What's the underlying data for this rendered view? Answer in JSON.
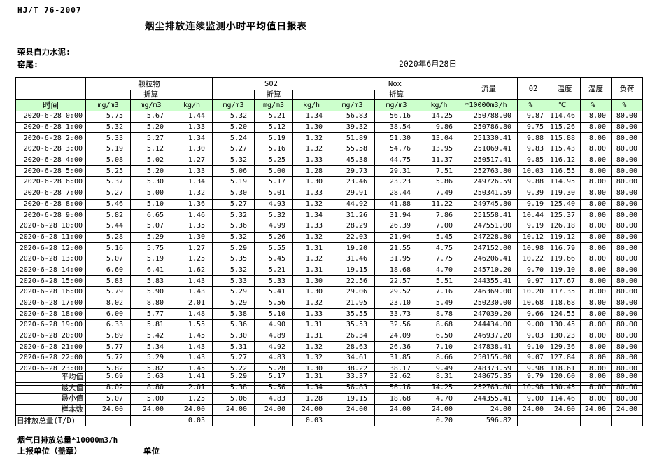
{
  "page": {
    "doc_code": "HJ/T  76-2007",
    "title": "烟尘排放连续监测小时平均值日报表",
    "company": "荣县自力水泥:",
    "location": "窑尾:",
    "date": "2020年6月28日"
  },
  "colors": {
    "header_green": "#ccffcc"
  },
  "table": {
    "time_label": "时间",
    "converted_label": "折算",
    "groups": {
      "particulate": "颗粒物",
      "so2": "S02",
      "nox": "Nox",
      "flow": "流量",
      "o2": "02",
      "temperature": "温度",
      "humidity": "湿度",
      "load": "负荷"
    },
    "units": [
      "mg/m3",
      "mg/m3",
      "kg/h",
      "mg/m3",
      "mg/m3",
      "kg/h",
      "mg/m3",
      "mg/m3",
      "kg/h",
      "*10000m3/h",
      "%",
      "℃",
      "%",
      "%"
    ],
    "rows": [
      {
        "time": "2020-6-28 0:00",
        "values": [
          "5.75",
          "5.67",
          "1.44",
          "5.32",
          "5.21",
          "1.34",
          "56.83",
          "56.16",
          "14.25",
          "250788.00",
          "9.87",
          "114.46",
          "8.00",
          "80.00"
        ]
      },
      {
        "time": "2020-6-28 1:00",
        "values": [
          "5.32",
          "5.20",
          "1.33",
          "5.20",
          "5.12",
          "1.30",
          "39.32",
          "38.54",
          "9.86",
          "250786.80",
          "9.75",
          "115.26",
          "8.00",
          "80.00"
        ]
      },
      {
        "time": "2020-6-28 2:00",
        "values": [
          "5.33",
          "5.27",
          "1.34",
          "5.24",
          "5.19",
          "1.32",
          "51.89",
          "51.30",
          "13.04",
          "251330.41",
          "9.88",
          "115.88",
          "8.00",
          "80.00"
        ]
      },
      {
        "time": "2020-6-28 3:00",
        "values": [
          "5.19",
          "5.12",
          "1.30",
          "5.27",
          "5.16",
          "1.32",
          "55.58",
          "54.76",
          "13.95",
          "251069.41",
          "9.83",
          "115.43",
          "8.00",
          "80.00"
        ]
      },
      {
        "time": "2020-6-28 4:00",
        "values": [
          "5.08",
          "5.02",
          "1.27",
          "5.32",
          "5.25",
          "1.33",
          "45.38",
          "44.75",
          "11.37",
          "250517.41",
          "9.85",
          "116.12",
          "8.00",
          "80.00"
        ]
      },
      {
        "time": "2020-6-28 5:00",
        "values": [
          "5.25",
          "5.20",
          "1.33",
          "5.06",
          "5.00",
          "1.28",
          "29.73",
          "29.31",
          "7.51",
          "252763.80",
          "10.03",
          "116.55",
          "8.00",
          "80.00"
        ]
      },
      {
        "time": "2020-6-28 6:00",
        "values": [
          "5.37",
          "5.30",
          "1.34",
          "5.19",
          "5.17",
          "1.30",
          "23.46",
          "23.23",
          "5.86",
          "249726.59",
          "9.88",
          "114.95",
          "8.00",
          "80.00"
        ]
      },
      {
        "time": "2020-6-28 7:00",
        "values": [
          "5.27",
          "5.00",
          "1.32",
          "5.30",
          "5.01",
          "1.33",
          "29.91",
          "28.44",
          "7.49",
          "250341.59",
          "9.39",
          "119.30",
          "8.00",
          "80.00"
        ]
      },
      {
        "time": "2020-6-28 8:00",
        "values": [
          "5.46",
          "5.10",
          "1.36",
          "5.27",
          "4.93",
          "1.32",
          "44.92",
          "41.88",
          "11.22",
          "249745.80",
          "9.19",
          "125.40",
          "8.00",
          "80.00"
        ]
      },
      {
        "time": "2020-6-28 9:00",
        "values": [
          "5.82",
          "6.65",
          "1.46",
          "5.32",
          "5.32",
          "1.34",
          "31.26",
          "31.94",
          "7.86",
          "251558.41",
          "10.44",
          "125.37",
          "8.00",
          "80.00"
        ]
      },
      {
        "time": "2020-6-28 10:00",
        "values": [
          "5.44",
          "5.07",
          "1.35",
          "5.36",
          "4.99",
          "1.33",
          "28.29",
          "26.39",
          "7.00",
          "247551.00",
          "9.19",
          "126.18",
          "8.00",
          "80.00"
        ]
      },
      {
        "time": "2020-6-28 11:00",
        "values": [
          "5.28",
          "5.29",
          "1.30",
          "5.32",
          "5.26",
          "1.32",
          "22.03",
          "21.94",
          "5.45",
          "247228.80",
          "10.12",
          "119.12",
          "8.00",
          "80.00"
        ]
      },
      {
        "time": "2020-6-28 12:00",
        "values": [
          "5.16",
          "5.75",
          "1.27",
          "5.29",
          "5.55",
          "1.31",
          "19.20",
          "21.55",
          "4.75",
          "247152.00",
          "10.98",
          "116.79",
          "8.00",
          "80.00"
        ]
      },
      {
        "time": "2020-6-28 13:00",
        "values": [
          "5.07",
          "5.19",
          "1.25",
          "5.35",
          "5.45",
          "1.32",
          "31.46",
          "31.95",
          "7.75",
          "246206.41",
          "10.22",
          "119.66",
          "8.00",
          "80.00"
        ]
      },
      {
        "time": "2020-6-28 14:00",
        "values": [
          "6.60",
          "6.41",
          "1.62",
          "5.32",
          "5.21",
          "1.31",
          "19.15",
          "18.68",
          "4.70",
          "245710.20",
          "9.70",
          "119.10",
          "8.00",
          "80.00"
        ]
      },
      {
        "time": "2020-6-28 15:00",
        "values": [
          "5.83",
          "5.83",
          "1.43",
          "5.33",
          "5.33",
          "1.30",
          "22.56",
          "22.57",
          "5.51",
          "244355.41",
          "9.97",
          "117.67",
          "8.00",
          "80.00"
        ]
      },
      {
        "time": "2020-6-28 16:00",
        "values": [
          "5.79",
          "5.90",
          "1.43",
          "5.29",
          "5.41",
          "1.30",
          "29.06",
          "29.52",
          "7.16",
          "246369.00",
          "10.20",
          "117.35",
          "8.00",
          "80.00"
        ]
      },
      {
        "time": "2020-6-28 17:00",
        "values": [
          "8.02",
          "8.80",
          "2.01",
          "5.29",
          "5.56",
          "1.32",
          "21.95",
          "23.10",
          "5.49",
          "250230.00",
          "10.68",
          "118.68",
          "8.00",
          "80.00"
        ]
      },
      {
        "time": "2020-6-28 18:00",
        "values": [
          "6.00",
          "5.77",
          "1.48",
          "5.38",
          "5.10",
          "1.33",
          "35.55",
          "33.73",
          "8.78",
          "247039.20",
          "9.66",
          "124.55",
          "8.00",
          "80.00"
        ]
      },
      {
        "time": "2020-6-28 19:00",
        "values": [
          "6.33",
          "5.81",
          "1.55",
          "5.36",
          "4.90",
          "1.31",
          "35.53",
          "32.56",
          "8.68",
          "244434.00",
          "9.00",
          "130.45",
          "8.00",
          "80.00"
        ]
      },
      {
        "time": "2020-6-28 20:00",
        "values": [
          "5.89",
          "5.42",
          "1.45",
          "5.30",
          "4.89",
          "1.31",
          "26.34",
          "24.09",
          "6.50",
          "246937.20",
          "9.03",
          "130.23",
          "8.00",
          "80.00"
        ]
      },
      {
        "time": "2020-6-28 21:00",
        "values": [
          "5.77",
          "5.34",
          "1.43",
          "5.31",
          "4.92",
          "1.32",
          "28.63",
          "26.36",
          "7.10",
          "247838.41",
          "9.10",
          "129.36",
          "8.00",
          "80.00"
        ]
      },
      {
        "time": "2020-6-28 22:00",
        "values": [
          "5.72",
          "5.29",
          "1.43",
          "5.27",
          "4.83",
          "1.32",
          "34.61",
          "31.85",
          "8.66",
          "250155.00",
          "9.07",
          "127.84",
          "8.00",
          "80.00"
        ]
      },
      {
        "time": "2020-6-28 23:00",
        "values": [
          "5.82",
          "5.82",
          "1.45",
          "5.22",
          "5.28",
          "1.30",
          "38.22",
          "38.17",
          "9.49",
          "248373.59",
          "9.98",
          "118.61",
          "8.00",
          "80.00"
        ]
      }
    ],
    "summary": [
      {
        "label": "平均值",
        "values": [
          "5.69",
          "5.63",
          "1.41",
          "5.29",
          "5.17",
          "1.31",
          "33.37",
          "32.62",
          "8.31",
          "248675.35",
          "9.79",
          "120.60",
          "8.00",
          "80.00"
        ]
      },
      {
        "label": "最大值",
        "values": [
          "8.02",
          "8.80",
          "2.01",
          "5.38",
          "5.56",
          "1.34",
          "56.83",
          "56.16",
          "14.25",
          "252763.80",
          "10.98",
          "130.45",
          "8.00",
          "80.00"
        ]
      },
      {
        "label": "最小值",
        "values": [
          "5.07",
          "5.00",
          "1.25",
          "5.06",
          "4.83",
          "1.28",
          "19.15",
          "18.68",
          "4.70",
          "244355.41",
          "9.00",
          "114.46",
          "8.00",
          "80.00"
        ]
      },
      {
        "label": "样本数",
        "values": [
          "24.00",
          "24.00",
          "24.00",
          "24.00",
          "24.00",
          "24.00",
          "24.00",
          "24.00",
          "24.00",
          "24.00",
          "24.00",
          "24.00",
          "24.00",
          "24.00"
        ]
      },
      {
        "label": "日排放总量(T/D)",
        "values": [
          "",
          "",
          "0.03",
          "",
          "",
          "0.03",
          "",
          "",
          "0.20",
          "596.82",
          "",
          "",
          "",
          ""
        ]
      }
    ]
  },
  "footer": {
    "note": "烟气日排放总量*10000m3/h",
    "report_unit": "上报单位（盖章）",
    "unit_label": "单位"
  }
}
